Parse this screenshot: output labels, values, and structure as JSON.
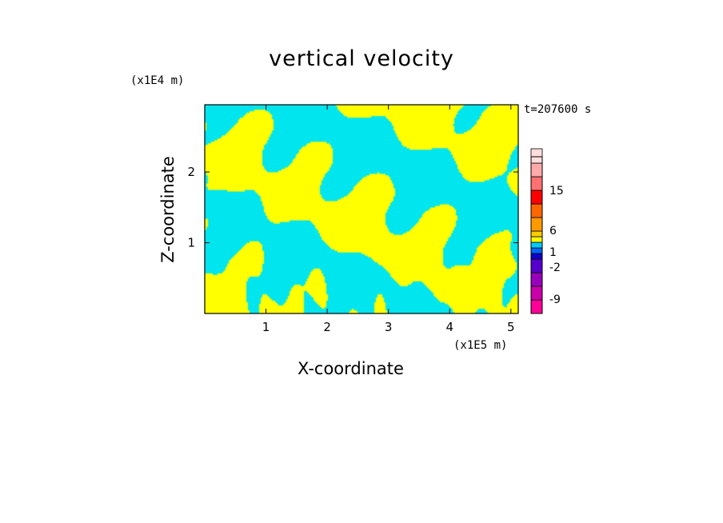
{
  "chart_data": {
    "type": "heatmap",
    "title": "vertical velocity",
    "xlabel": "X-coordinate",
    "ylabel": "Z-coordinate",
    "x_unit": "(x1E5 m)",
    "y_unit": "(x1E4 m)",
    "annotation": "t=207600 s",
    "xlim": [
      0,
      5.12
    ],
    "ylim": [
      0,
      2.95
    ],
    "x_ticks": [
      "1",
      "2",
      "3",
      "4",
      "5"
    ],
    "x_tick_values": [
      1,
      2,
      3,
      4,
      5
    ],
    "y_ticks": [
      "1",
      "2"
    ],
    "y_tick_values": [
      1,
      2
    ],
    "field_colors": {
      "positive": "#ffff00",
      "negative": "#00e5ee"
    },
    "colorbar": {
      "labels": [
        "15",
        "6",
        "1",
        "-2",
        "-9"
      ],
      "levels": [
        {
          "color": "#ff0099"
        },
        {
          "color": "#cc00aa"
        },
        {
          "color": "#9900bb"
        },
        {
          "color": "#5500cc"
        },
        {
          "color": "#1100cc"
        },
        {
          "color": "#0066ff"
        },
        {
          "color": "#00ccff"
        },
        {
          "color": "#ffff00"
        },
        {
          "color": "#ffcc00"
        },
        {
          "color": "#ff9900"
        },
        {
          "color": "#ff6600"
        },
        {
          "color": "#ff0000"
        },
        {
          "color": "#ff7070"
        },
        {
          "color": "#ffaaaa"
        },
        {
          "color": "#ffdddd"
        }
      ]
    }
  }
}
